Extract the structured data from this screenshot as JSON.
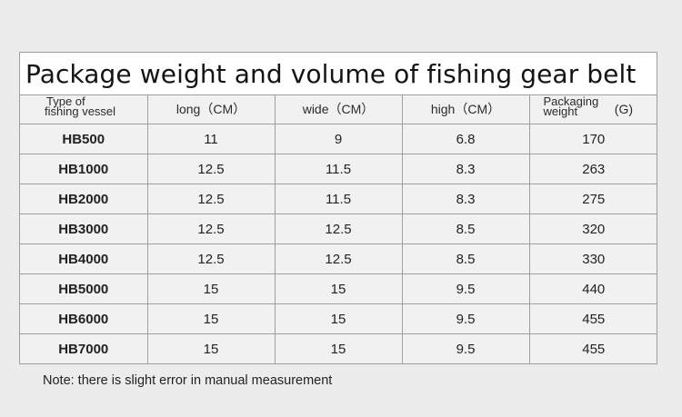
{
  "title": "Package weight and volume of fishing gear belt",
  "headers": {
    "type_line1": "Type of",
    "type_line2": "fishing vessel",
    "long": "long（CM）",
    "wide": "wide（CM）",
    "high": "high（CM）",
    "weight_line1": "Packaging",
    "weight_line2": "weight",
    "weight_unit": "(G)"
  },
  "rows": [
    {
      "model": "HB500",
      "long": "11",
      "wide": "9",
      "high": "6.8",
      "weight": "170"
    },
    {
      "model": "HB1000",
      "long": "12.5",
      "wide": "11.5",
      "high": "8.3",
      "weight": "263"
    },
    {
      "model": "HB2000",
      "long": "12.5",
      "wide": "11.5",
      "high": "8.3",
      "weight": "275"
    },
    {
      "model": "HB3000",
      "long": "12.5",
      "wide": "12.5",
      "high": "8.5",
      "weight": "320"
    },
    {
      "model": "HB4000",
      "long": "12.5",
      "wide": "12.5",
      "high": "8.5",
      "weight": "330"
    },
    {
      "model": "HB5000",
      "long": "15",
      "wide": "15",
      "high": "9.5",
      "weight": "440"
    },
    {
      "model": "HB6000",
      "long": "15",
      "wide": "15",
      "high": "9.5",
      "weight": "455"
    },
    {
      "model": "HB7000",
      "long": "15",
      "wide": "15",
      "high": "9.5",
      "weight": "455"
    }
  ],
  "note": "Note: there is slight error in manual measurement"
}
